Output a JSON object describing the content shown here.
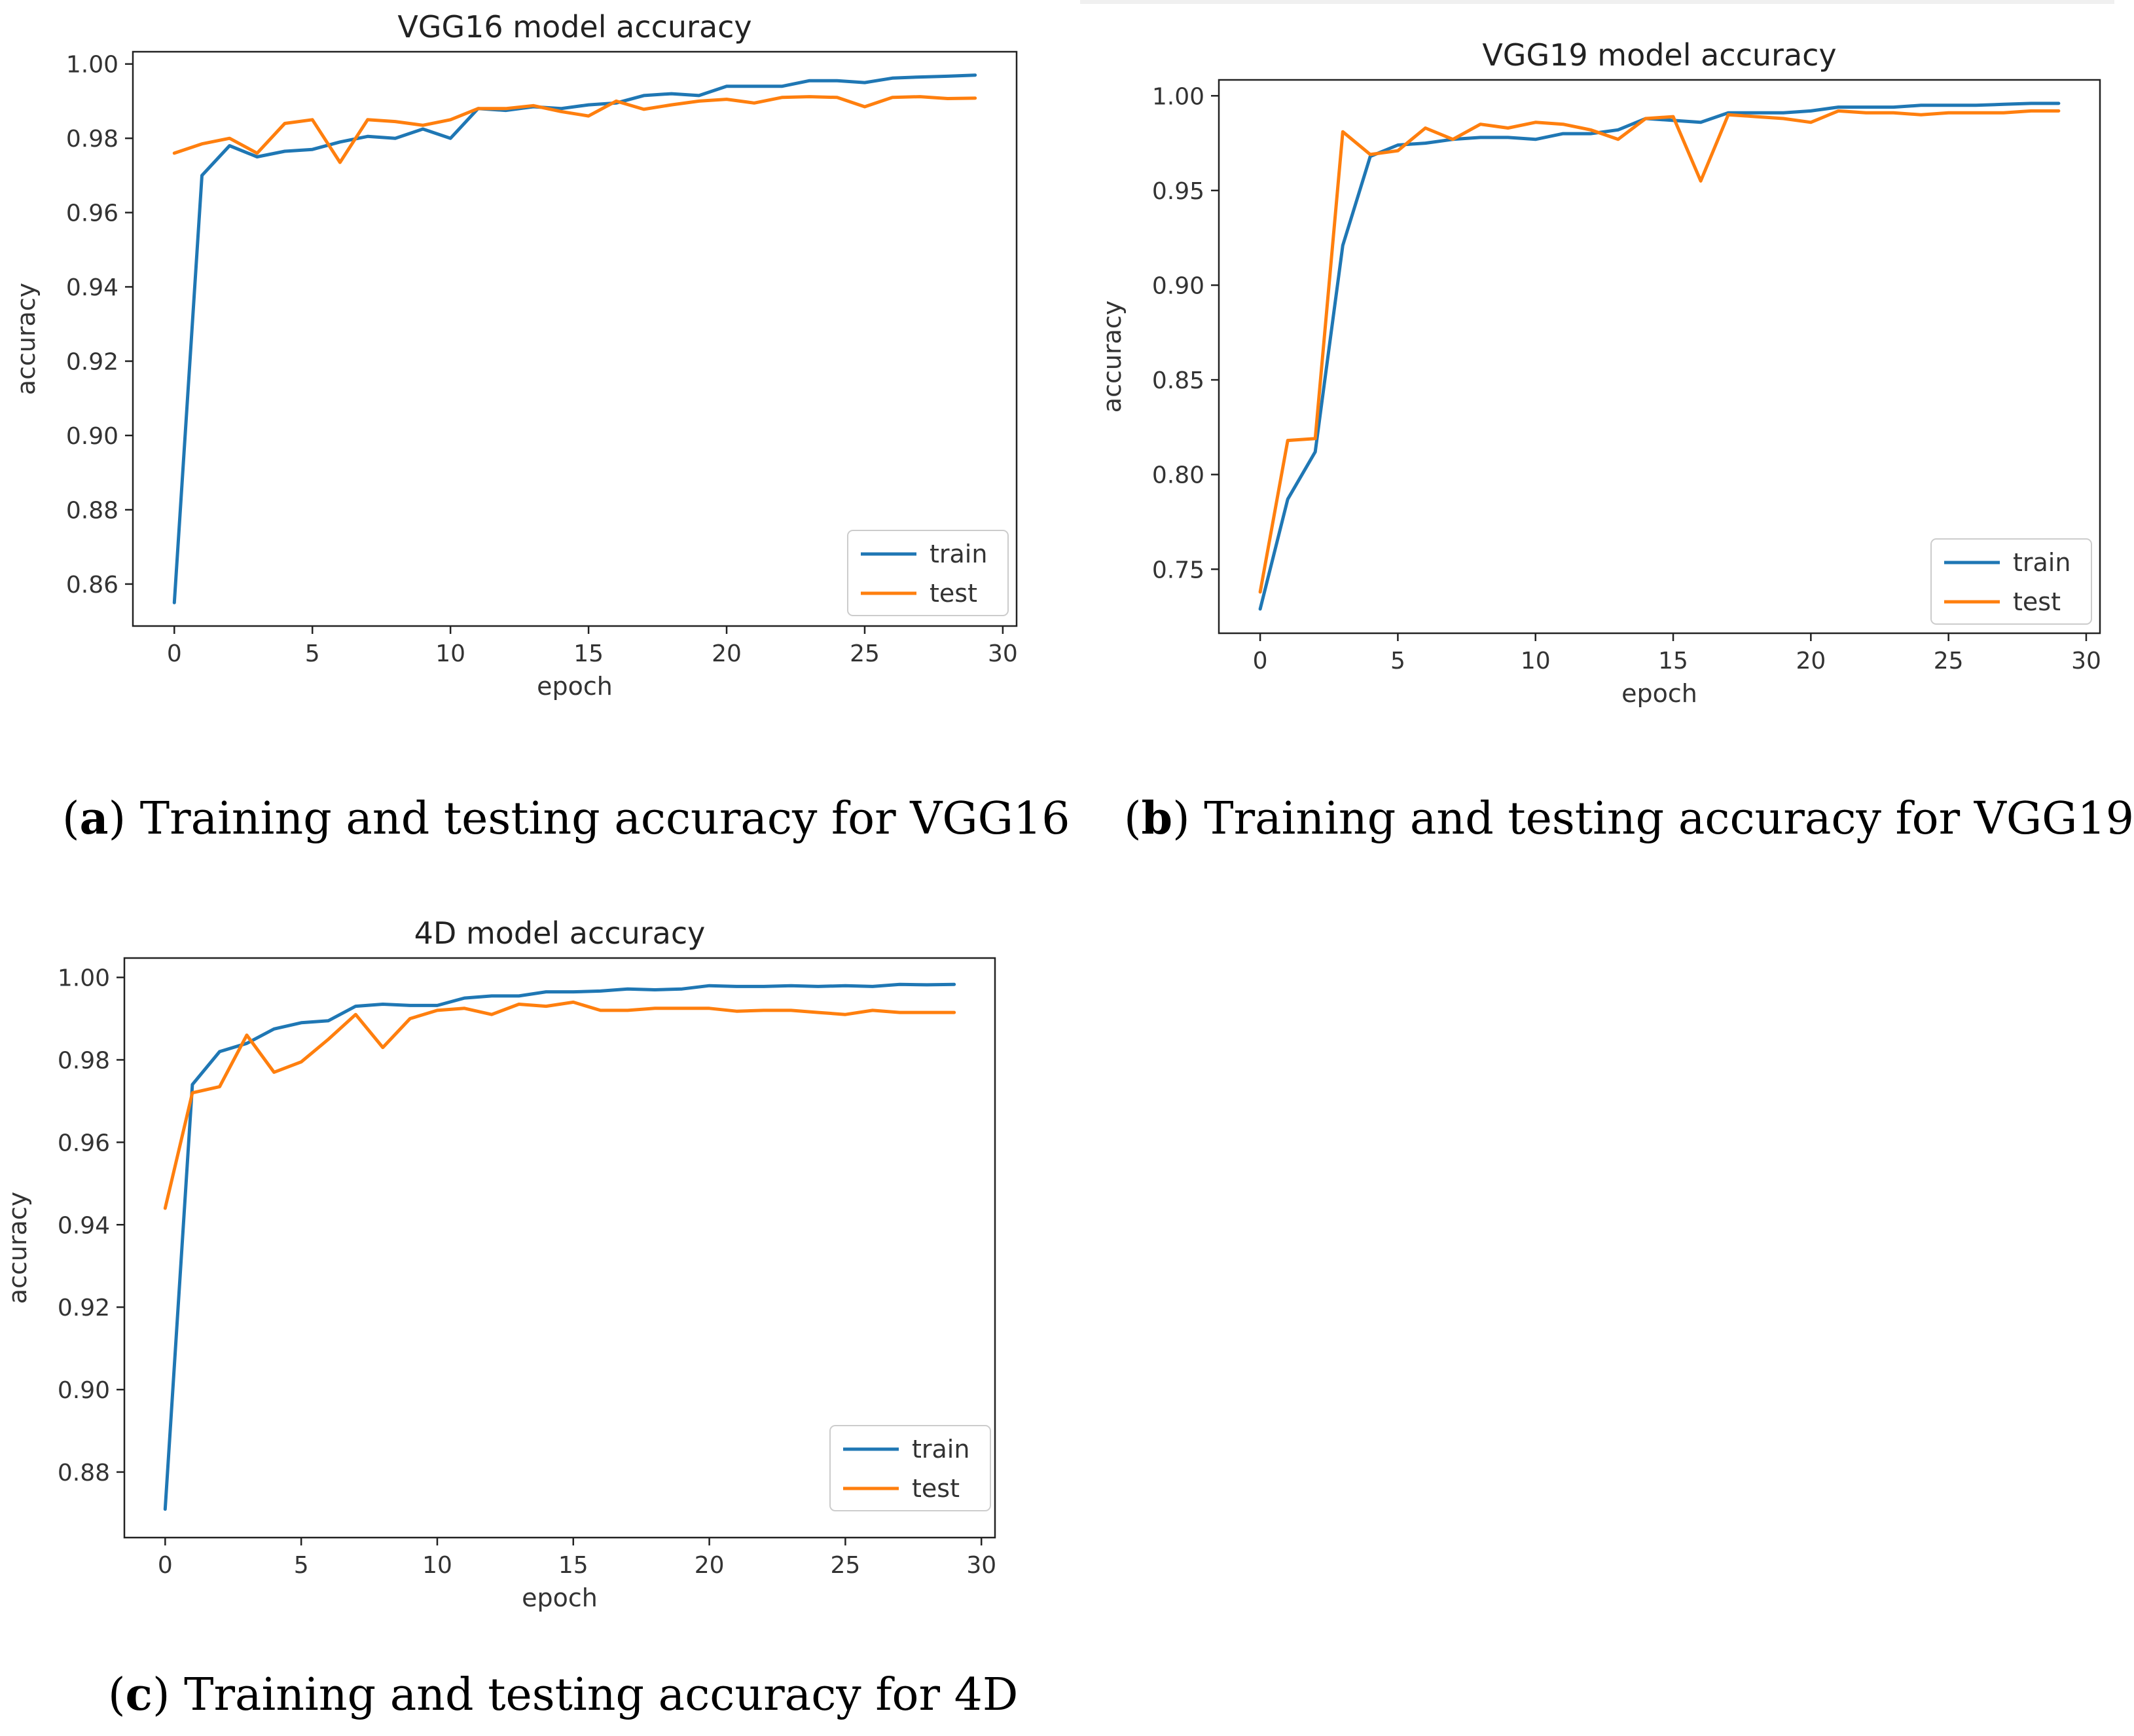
{
  "chart_data": [
    {
      "id": "vgg16",
      "type": "line",
      "title": "VGG16 model accuracy",
      "xlabel": "epoch",
      "ylabel": "accuracy",
      "xlim": [
        -1.5,
        30.5
      ],
      "ylim": [
        0.8487,
        1.0033
      ],
      "xticks": [
        0,
        5,
        10,
        15,
        20,
        25,
        30
      ],
      "yticks": [
        0.86,
        0.88,
        0.9,
        0.92,
        0.94,
        0.96,
        0.98,
        1.0
      ],
      "ytick_labels": [
        "0.86",
        "0.88",
        "0.90",
        "0.92",
        "0.94",
        "0.96",
        "0.98",
        "1.00"
      ],
      "legend": [
        {
          "name": "train",
          "color": "#1f77b4"
        },
        {
          "name": "test",
          "color": "#ff7f0e"
        }
      ],
      "legend_position": "lower-right",
      "series": [
        {
          "name": "train",
          "color": "#1f77b4",
          "x": [
            0,
            1,
            2,
            3,
            4,
            5,
            6,
            7,
            8,
            9,
            10,
            11,
            12,
            13,
            14,
            15,
            16,
            17,
            18,
            19,
            20,
            21,
            22,
            23,
            24,
            25,
            26,
            27,
            28,
            29
          ],
          "values": [
            0.855,
            0.97,
            0.978,
            0.975,
            0.9765,
            0.977,
            0.979,
            0.9805,
            0.98,
            0.9825,
            0.98,
            0.988,
            0.9875,
            0.9885,
            0.988,
            0.989,
            0.9895,
            0.9915,
            0.992,
            0.9915,
            0.994,
            0.994,
            0.994,
            0.9955,
            0.9955,
            0.995,
            0.9962,
            0.9965,
            0.9967,
            0.997
          ]
        },
        {
          "name": "test",
          "color": "#ff7f0e",
          "x": [
            0,
            1,
            2,
            3,
            4,
            5,
            6,
            7,
            8,
            9,
            10,
            11,
            12,
            13,
            14,
            15,
            16,
            17,
            18,
            19,
            20,
            21,
            22,
            23,
            24,
            25,
            26,
            27,
            28,
            29
          ],
          "values": [
            0.976,
            0.9785,
            0.98,
            0.976,
            0.984,
            0.985,
            0.9735,
            0.985,
            0.9845,
            0.9835,
            0.985,
            0.988,
            0.988,
            0.9888,
            0.9872,
            0.986,
            0.99,
            0.9878,
            0.989,
            0.99,
            0.9905,
            0.9895,
            0.991,
            0.9912,
            0.991,
            0.9885,
            0.991,
            0.9912,
            0.9907,
            0.9908
          ]
        }
      ]
    },
    {
      "id": "vgg19",
      "type": "line",
      "title": "VGG19 model accuracy",
      "xlabel": "epoch",
      "ylabel": "accuracy",
      "xlim": [
        -1.5,
        30.5
      ],
      "ylim": [
        0.7162,
        1.0084
      ],
      "xticks": [
        0,
        5,
        10,
        15,
        20,
        25,
        30
      ],
      "yticks": [
        0.75,
        0.8,
        0.85,
        0.9,
        0.95,
        1.0
      ],
      "ytick_labels": [
        "0.75",
        "0.80",
        "0.85",
        "0.90",
        "0.95",
        "1.00"
      ],
      "legend": [
        {
          "name": "train",
          "color": "#1f77b4"
        },
        {
          "name": "test",
          "color": "#ff7f0e"
        }
      ],
      "legend_position": "lower-right",
      "series": [
        {
          "name": "train",
          "color": "#1f77b4",
          "x": [
            0,
            1,
            2,
            3,
            4,
            5,
            6,
            7,
            8,
            9,
            10,
            11,
            12,
            13,
            14,
            15,
            16,
            17,
            18,
            19,
            20,
            21,
            22,
            23,
            24,
            25,
            26,
            27,
            28,
            29
          ],
          "values": [
            0.729,
            0.787,
            0.812,
            0.921,
            0.968,
            0.974,
            0.975,
            0.977,
            0.978,
            0.978,
            0.977,
            0.98,
            0.98,
            0.982,
            0.988,
            0.987,
            0.986,
            0.991,
            0.991,
            0.991,
            0.992,
            0.994,
            0.994,
            0.994,
            0.995,
            0.995,
            0.995,
            0.9955,
            0.996,
            0.996
          ]
        },
        {
          "name": "test",
          "color": "#ff7f0e",
          "x": [
            0,
            1,
            2,
            3,
            4,
            5,
            6,
            7,
            8,
            9,
            10,
            11,
            12,
            13,
            14,
            15,
            16,
            17,
            18,
            19,
            20,
            21,
            22,
            23,
            24,
            25,
            26,
            27,
            28,
            29
          ],
          "values": [
            0.738,
            0.818,
            0.819,
            0.981,
            0.969,
            0.971,
            0.983,
            0.977,
            0.985,
            0.983,
            0.986,
            0.985,
            0.982,
            0.977,
            0.988,
            0.989,
            0.955,
            0.99,
            0.989,
            0.988,
            0.986,
            0.992,
            0.991,
            0.991,
            0.99,
            0.991,
            0.991,
            0.991,
            0.992,
            0.992
          ]
        }
      ]
    },
    {
      "id": "4d",
      "type": "line",
      "title": "4D model accuracy",
      "xlabel": "epoch",
      "ylabel": "accuracy",
      "xlim": [
        -1.5,
        30.5
      ],
      "ylim": [
        0.8641,
        1.0047
      ],
      "xticks": [
        0,
        5,
        10,
        15,
        20,
        25,
        30
      ],
      "yticks": [
        0.88,
        0.9,
        0.92,
        0.94,
        0.96,
        0.98,
        1.0
      ],
      "ytick_labels": [
        "0.88",
        "0.90",
        "0.92",
        "0.94",
        "0.96",
        "0.98",
        "1.00"
      ],
      "legend": [
        {
          "name": "train",
          "color": "#1f77b4"
        },
        {
          "name": "test",
          "color": "#ff7f0e"
        }
      ],
      "legend_position": "lower-right",
      "series": [
        {
          "name": "train",
          "color": "#1f77b4",
          "x": [
            0,
            1,
            2,
            3,
            4,
            5,
            6,
            7,
            8,
            9,
            10,
            11,
            12,
            13,
            14,
            15,
            16,
            17,
            18,
            19,
            20,
            21,
            22,
            23,
            24,
            25,
            26,
            27,
            28,
            29
          ],
          "values": [
            0.871,
            0.974,
            0.982,
            0.984,
            0.9875,
            0.989,
            0.9895,
            0.993,
            0.9935,
            0.9932,
            0.9932,
            0.995,
            0.9955,
            0.9955,
            0.9965,
            0.9965,
            0.9967,
            0.9972,
            0.997,
            0.9972,
            0.998,
            0.9978,
            0.9978,
            0.998,
            0.9978,
            0.998,
            0.9978,
            0.9983,
            0.9982,
            0.9983
          ]
        },
        {
          "name": "test",
          "color": "#ff7f0e",
          "x": [
            0,
            1,
            2,
            3,
            4,
            5,
            6,
            7,
            8,
            9,
            10,
            11,
            12,
            13,
            14,
            15,
            16,
            17,
            18,
            19,
            20,
            21,
            22,
            23,
            24,
            25,
            26,
            27,
            28,
            29
          ],
          "values": [
            0.944,
            0.972,
            0.9735,
            0.986,
            0.977,
            0.9795,
            0.985,
            0.991,
            0.983,
            0.99,
            0.992,
            0.9925,
            0.991,
            0.9935,
            0.993,
            0.994,
            0.992,
            0.992,
            0.9925,
            0.9925,
            0.9925,
            0.9918,
            0.992,
            0.992,
            0.9915,
            0.991,
            0.992,
            0.9915,
            0.9915,
            0.9915
          ]
        }
      ]
    }
  ],
  "captions": [
    {
      "label": "a",
      "text": ") Training and testing accuracy for VGG16"
    },
    {
      "label": "b",
      "text": ") Training and testing accuracy for VGG19"
    },
    {
      "label": "c",
      "text": ") Training and testing accuracy for 4D"
    }
  ]
}
